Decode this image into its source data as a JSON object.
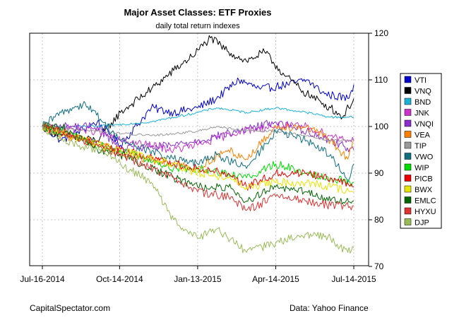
{
  "chart_data": {
    "type": "line",
    "title": "Major Asset Classes: ETF Proxies",
    "subtitle": "daily total return indexes",
    "xlabel": "",
    "ylabel": "",
    "ylim": [
      70,
      120
    ],
    "yticks": [
      70,
      80,
      90,
      100,
      110,
      120
    ],
    "x_start": "2014-07-16",
    "x_end": "2015-07-14",
    "xticks": [
      {
        "label": "Jul-16-2014",
        "date": "2014-07-16"
      },
      {
        "label": "Oct-14-2014",
        "date": "2014-10-14"
      },
      {
        "label": "Jan-13-2015",
        "date": "2015-01-13"
      },
      {
        "label": "Apr-14-2015",
        "date": "2015-04-14"
      },
      {
        "label": "Jul-14-2015",
        "date": "2015-07-14"
      }
    ],
    "grid": true,
    "legend_position": "right",
    "series": [
      {
        "name": "VTI",
        "color": "#0000cc",
        "dates": [
          "2014-07-16",
          "2014-08-07",
          "2014-09-18",
          "2014-10-15",
          "2014-11-20",
          "2014-12-16",
          "2015-01-13",
          "2015-02-04",
          "2015-03-02",
          "2015-03-27",
          "2015-04-28",
          "2015-05-20",
          "2015-06-10",
          "2015-07-07",
          "2015-07-14"
        ],
        "values": [
          100,
          97,
          101,
          96,
          104,
          103,
          104,
          106,
          110,
          108,
          109,
          110,
          107,
          106,
          109
        ]
      },
      {
        "name": "VNQ",
        "color": "#000000",
        "dates": [
          "2014-07-16",
          "2014-08-07",
          "2014-09-18",
          "2014-10-15",
          "2014-11-20",
          "2014-12-16",
          "2015-01-06",
          "2015-01-28",
          "2015-02-18",
          "2015-03-11",
          "2015-04-01",
          "2015-04-24",
          "2015-05-20",
          "2015-06-17",
          "2015-07-01",
          "2015-07-14"
        ],
        "values": [
          100,
          98,
          97,
          103,
          108,
          112,
          115,
          119,
          116,
          114,
          116,
          111,
          107,
          104,
          102,
          106
        ]
      },
      {
        "name": "BND",
        "color": "#1ab2d6",
        "dates": [
          "2014-07-16",
          "2014-09-18",
          "2014-11-20",
          "2015-01-13",
          "2015-02-04",
          "2015-03-11",
          "2015-04-14",
          "2015-05-20",
          "2015-06-17",
          "2015-07-14"
        ],
        "values": [
          100,
          100,
          101,
          103,
          104,
          103,
          104,
          103,
          102,
          102
        ]
      },
      {
        "name": "JNK",
        "color": "#cc33cc",
        "dates": [
          "2014-07-16",
          "2014-09-18",
          "2014-10-15",
          "2014-12-16",
          "2015-01-13",
          "2015-03-02",
          "2015-04-14",
          "2015-05-20",
          "2015-06-17",
          "2015-07-14"
        ],
        "values": [
          100,
          99,
          97,
          95,
          96,
          99,
          100,
          100,
          98,
          97
        ]
      },
      {
        "name": "VNQI",
        "color": "#8c2ecc",
        "dates": [
          "2014-07-16",
          "2014-09-18",
          "2014-10-15",
          "2014-12-16",
          "2015-01-13",
          "2015-03-02",
          "2015-04-14",
          "2015-05-20",
          "2015-06-17",
          "2015-07-14"
        ],
        "values": [
          100,
          100,
          95,
          96,
          97,
          99,
          101,
          99,
          97,
          95
        ]
      },
      {
        "name": "VEA",
        "color": "#ff8000",
        "dates": [
          "2014-07-16",
          "2014-08-07",
          "2014-09-18",
          "2014-10-15",
          "2014-12-16",
          "2015-01-13",
          "2015-02-18",
          "2015-03-11",
          "2015-04-14",
          "2015-05-20",
          "2015-06-17",
          "2015-07-07",
          "2015-07-14"
        ],
        "values": [
          100,
          98,
          97,
          94,
          92,
          91,
          95,
          93,
          100,
          100,
          97,
          93,
          97
        ]
      },
      {
        "name": "TIP",
        "color": "#999999",
        "dates": [
          "2014-07-16",
          "2014-09-18",
          "2014-11-20",
          "2015-01-13",
          "2015-02-04",
          "2015-03-11",
          "2015-04-14",
          "2015-05-20",
          "2015-06-17",
          "2015-07-14"
        ],
        "values": [
          100,
          99,
          98,
          99,
          100,
          99,
          99,
          98,
          97,
          97
        ]
      },
      {
        "name": "VWO",
        "color": "#107080",
        "dates": [
          "2014-07-16",
          "2014-08-07",
          "2014-09-04",
          "2014-10-15",
          "2014-12-16",
          "2015-01-13",
          "2015-02-04",
          "2015-03-11",
          "2015-04-14",
          "2015-05-20",
          "2015-06-17",
          "2015-07-07",
          "2015-07-14"
        ],
        "values": [
          100,
          103,
          105,
          97,
          93,
          92,
          94,
          91,
          99,
          97,
          94,
          88,
          92
        ]
      },
      {
        "name": "WIP",
        "color": "#00dd00",
        "dates": [
          "2014-07-16",
          "2014-08-07",
          "2014-09-18",
          "2014-10-15",
          "2014-12-16",
          "2015-01-13",
          "2015-02-18",
          "2015-03-11",
          "2015-04-14",
          "2015-05-20",
          "2015-06-17",
          "2015-07-14"
        ],
        "values": [
          100,
          99,
          96,
          95,
          91,
          91,
          90,
          89,
          92,
          90,
          89,
          88
        ]
      },
      {
        "name": "PICB",
        "color": "#ee0000",
        "dates": [
          "2014-07-16",
          "2014-08-07",
          "2014-09-18",
          "2014-10-15",
          "2014-12-16",
          "2015-01-13",
          "2015-02-18",
          "2015-03-11",
          "2015-04-14",
          "2015-05-20",
          "2015-06-17",
          "2015-07-14"
        ],
        "values": [
          100,
          99,
          96,
          95,
          92,
          91,
          90,
          87,
          90,
          90,
          89,
          87
        ]
      },
      {
        "name": "BWX",
        "color": "#e6e600",
        "dates": [
          "2014-07-16",
          "2014-08-07",
          "2014-09-18",
          "2014-10-15",
          "2014-12-16",
          "2015-01-13",
          "2015-02-18",
          "2015-03-11",
          "2015-04-14",
          "2015-05-20",
          "2015-06-17",
          "2015-07-14"
        ],
        "values": [
          100,
          99,
          96,
          95,
          92,
          90,
          89,
          87,
          88,
          88,
          87,
          86
        ]
      },
      {
        "name": "EMLC",
        "color": "#006600",
        "dates": [
          "2014-07-16",
          "2014-08-07",
          "2014-09-18",
          "2014-10-15",
          "2014-12-16",
          "2015-01-13",
          "2015-02-18",
          "2015-03-11",
          "2015-04-14",
          "2015-05-20",
          "2015-06-17",
          "2015-07-14"
        ],
        "values": [
          100,
          100,
          95,
          94,
          89,
          87,
          87,
          84,
          87,
          86,
          84,
          84
        ]
      },
      {
        "name": "HYXU",
        "color": "#dd3333",
        "dates": [
          "2014-07-16",
          "2014-08-07",
          "2014-09-18",
          "2014-10-15",
          "2014-12-16",
          "2015-01-13",
          "2015-02-18",
          "2015-03-11",
          "2015-04-14",
          "2015-05-20",
          "2015-06-17",
          "2015-07-14"
        ],
        "values": [
          100,
          99,
          96,
          94,
          89,
          86,
          85,
          82,
          85,
          84,
          83,
          83
        ]
      },
      {
        "name": "DJP",
        "color": "#99bb55",
        "dates": [
          "2014-07-16",
          "2014-08-07",
          "2014-09-18",
          "2014-10-15",
          "2014-11-20",
          "2014-12-16",
          "2015-01-13",
          "2015-02-04",
          "2015-03-11",
          "2015-04-14",
          "2015-05-20",
          "2015-06-17",
          "2015-07-07",
          "2015-07-14"
        ],
        "values": [
          100,
          97,
          95,
          92,
          88,
          80,
          76,
          78,
          73,
          75,
          77,
          76,
          73,
          74
        ]
      }
    ]
  },
  "footer": {
    "left": "CapitalSpectator.com",
    "right": "Data: Yahoo Finance"
  }
}
